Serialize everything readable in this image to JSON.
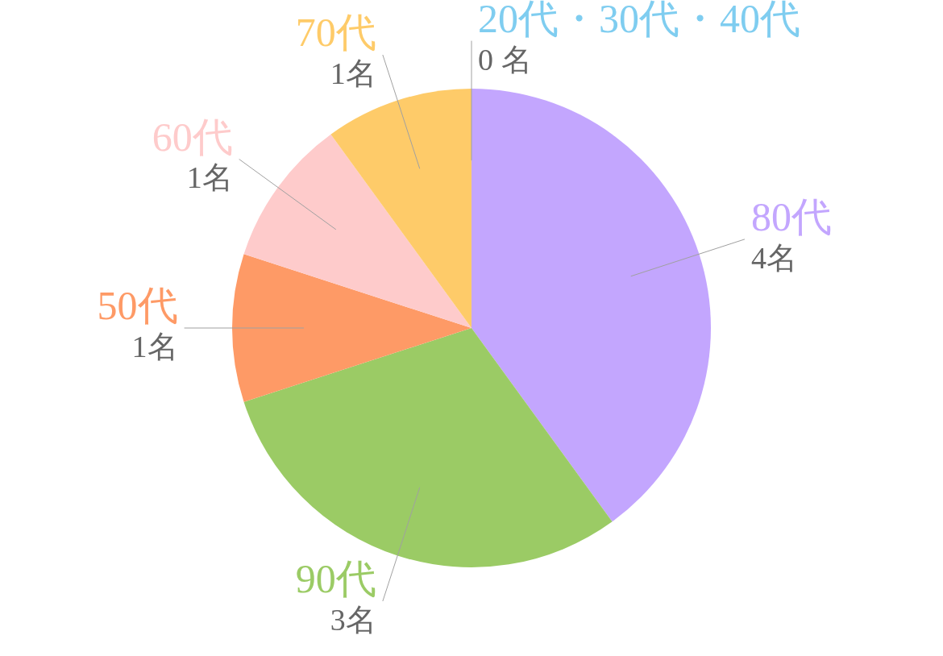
{
  "chart_data": {
    "type": "pie",
    "categories": [
      "20代・30代・40代",
      "80代",
      "90代",
      "50代",
      "60代",
      "70代"
    ],
    "values": [
      0,
      4,
      3,
      1,
      1,
      1
    ],
    "colors": [
      "#7fcdf0",
      "#c3a6fe",
      "#9bcb65",
      "#fe9a66",
      "#fecbcb",
      "#fecb69"
    ],
    "value_labels": [
      "0 名",
      "4名",
      "3名",
      "1名",
      "1名",
      "1名"
    ],
    "legend": false
  }
}
